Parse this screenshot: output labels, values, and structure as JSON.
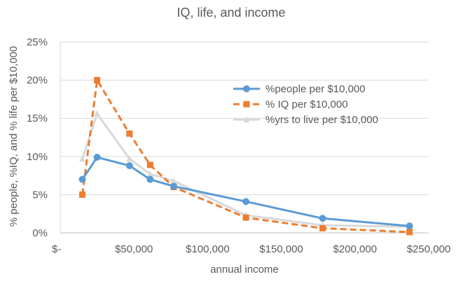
{
  "chart_data": {
    "type": "line",
    "title": "IQ, life, and income",
    "xlabel": "annual income",
    "ylabel": "% people, %IQ, and % life per $10,000",
    "xlim": [
      0,
      250000
    ],
    "ylim": [
      0,
      0.25
    ],
    "x_ticks": [
      {
        "value": 0,
        "label": "$-"
      },
      {
        "value": 50000,
        "label": "$50,000"
      },
      {
        "value": 100000,
        "label": "$100,000"
      },
      {
        "value": 150000,
        "label": "$150,000"
      },
      {
        "value": 200000,
        "label": "$200,000"
      },
      {
        "value": 250000,
        "label": "$250,000"
      }
    ],
    "y_ticks": [
      {
        "value": 0,
        "label": "0%"
      },
      {
        "value": 0.05,
        "label": "5%"
      },
      {
        "value": 0.1,
        "label": "10%"
      },
      {
        "value": 0.15,
        "label": "15%"
      },
      {
        "value": 0.2,
        "label": "20%"
      },
      {
        "value": 0.25,
        "label": "25%"
      }
    ],
    "grid": "horizontal",
    "legend_position": "right",
    "series": [
      {
        "name": "%people per $10,000",
        "color": "#5B9BD5",
        "marker": "circle",
        "dash": "solid",
        "points": [
          [
            15000,
            0.07
          ],
          [
            25000,
            0.099
          ],
          [
            47000,
            0.088
          ],
          [
            61000,
            0.07
          ],
          [
            77000,
            0.061
          ],
          [
            126000,
            0.041
          ],
          [
            178000,
            0.019
          ],
          [
            237000,
            0.009
          ]
        ]
      },
      {
        "name": "% IQ per $10,000",
        "color": "#ED7D31",
        "marker": "square",
        "dash": "dashed",
        "points": [
          [
            15000,
            0.05
          ],
          [
            25000,
            0.2
          ],
          [
            47000,
            0.13
          ],
          [
            61000,
            0.089
          ],
          [
            77000,
            0.06
          ],
          [
            126000,
            0.02
          ],
          [
            178000,
            0.006
          ],
          [
            237000,
            0.001
          ]
        ]
      },
      {
        "name": "%yrs to live per $10,000",
        "color": "#D9D9D9",
        "marker": "triangle",
        "dash": "solid",
        "points": [
          [
            15000,
            0.097
          ],
          [
            25000,
            0.156
          ],
          [
            47000,
            0.097
          ],
          [
            61000,
            0.077
          ],
          [
            77000,
            0.068
          ],
          [
            126000,
            0.023
          ],
          [
            178000,
            0.01
          ],
          [
            237000,
            0.008
          ]
        ]
      }
    ]
  }
}
